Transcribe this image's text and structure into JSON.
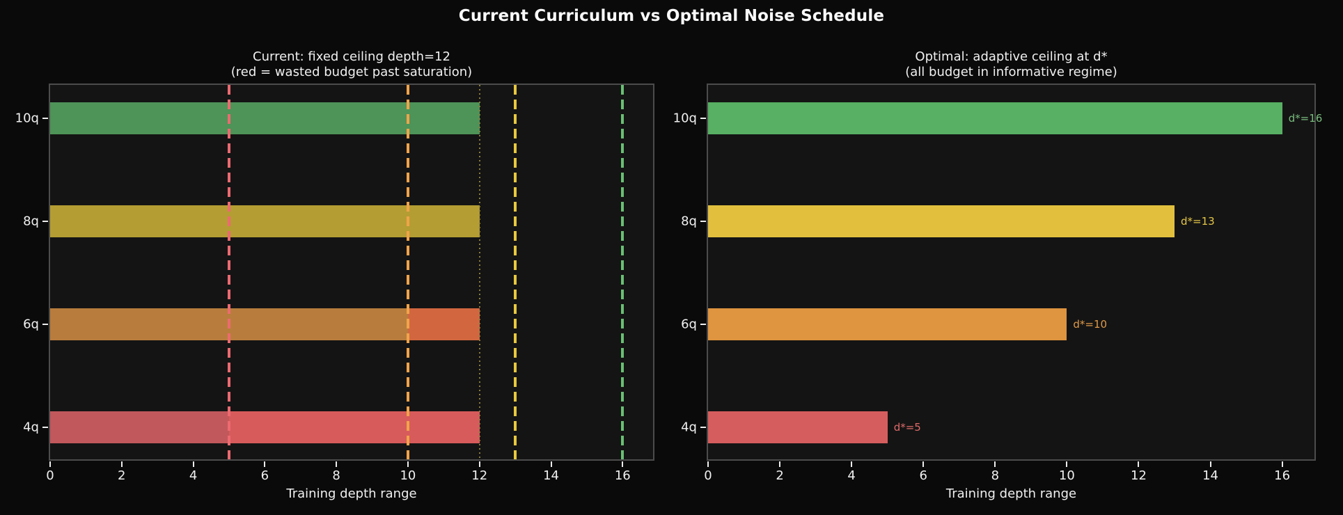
{
  "figure": {
    "title": "Current Curriculum vs Optimal Noise Schedule",
    "background": "#0a0a0a",
    "axes_background": "#141414",
    "spine_color": "#4c4c4c",
    "text_color": "#f0f0f0"
  },
  "chart_data": [
    {
      "type": "bar",
      "orientation": "horizontal",
      "title": "Current: fixed ceiling depth=12",
      "subtitle": "(red = wasted budget past saturation)",
      "xlabel": "Training depth range",
      "xlim": [
        0,
        16.85
      ],
      "xticks": [
        0,
        2,
        4,
        6,
        8,
        10,
        12,
        14,
        16
      ],
      "categories": [
        "10q",
        "8q",
        "6q",
        "4q"
      ],
      "fixed_ceiling": 12,
      "grid": false,
      "legend": false,
      "bars": [
        {
          "category": "10q",
          "segments": [
            {
              "from": 0,
              "to": 12,
              "color": "#4E9358"
            }
          ]
        },
        {
          "category": "8q",
          "segments": [
            {
              "from": 0,
              "to": 12,
              "color": "#B49D33"
            }
          ]
        },
        {
          "category": "6q",
          "segments": [
            {
              "from": 0,
              "to": 10,
              "color": "#B87D3C"
            },
            {
              "from": 10,
              "to": 12,
              "color": "#D2673F"
            }
          ]
        },
        {
          "category": "4q",
          "segments": [
            {
              "from": 0,
              "to": 5,
              "color": "#C1585C"
            },
            {
              "from": 5,
              "to": 12,
              "color": "#D85B5B"
            }
          ]
        }
      ],
      "vlines": [
        {
          "x": 5,
          "color": "#EC6A70",
          "style": "dashed"
        },
        {
          "x": 10,
          "color": "#F0A44A",
          "style": "dashed"
        },
        {
          "x": 13,
          "color": "#E8C83D",
          "style": "dashed"
        },
        {
          "x": 16,
          "color": "#6ABF73",
          "style": "dashed"
        },
        {
          "x": 12,
          "color": "#8A7D3A",
          "style": "dotted"
        }
      ]
    },
    {
      "type": "bar",
      "orientation": "horizontal",
      "title": "Optimal: adaptive ceiling at d*",
      "subtitle": "(all budget in informative regime)",
      "xlabel": "Training depth range",
      "xlim": [
        0,
        16.9
      ],
      "xticks": [
        0,
        2,
        4,
        6,
        8,
        10,
        12,
        14,
        16
      ],
      "categories": [
        "10q",
        "8q",
        "6q",
        "4q"
      ],
      "grid": false,
      "legend": false,
      "bars": [
        {
          "category": "10q",
          "value": 16,
          "label": "d*=16",
          "label_color": "#79BD7E",
          "segments": [
            {
              "from": 0,
              "to": 16,
              "color": "#57B063"
            }
          ]
        },
        {
          "category": "8q",
          "value": 13,
          "label": "d*=13",
          "label_color": "#E5C648",
          "segments": [
            {
              "from": 0,
              "to": 13,
              "color": "#E2C03E"
            }
          ]
        },
        {
          "category": "6q",
          "value": 10,
          "label": "d*=10",
          "label_color": "#E09A48",
          "segments": [
            {
              "from": 0,
              "to": 10,
              "color": "#DF943F"
            }
          ]
        },
        {
          "category": "4q",
          "value": 5,
          "label": "d*=5",
          "label_color": "#E06A6A",
          "segments": [
            {
              "from": 0,
              "to": 5,
              "color": "#D65D5D"
            }
          ]
        }
      ],
      "vlines": []
    }
  ]
}
